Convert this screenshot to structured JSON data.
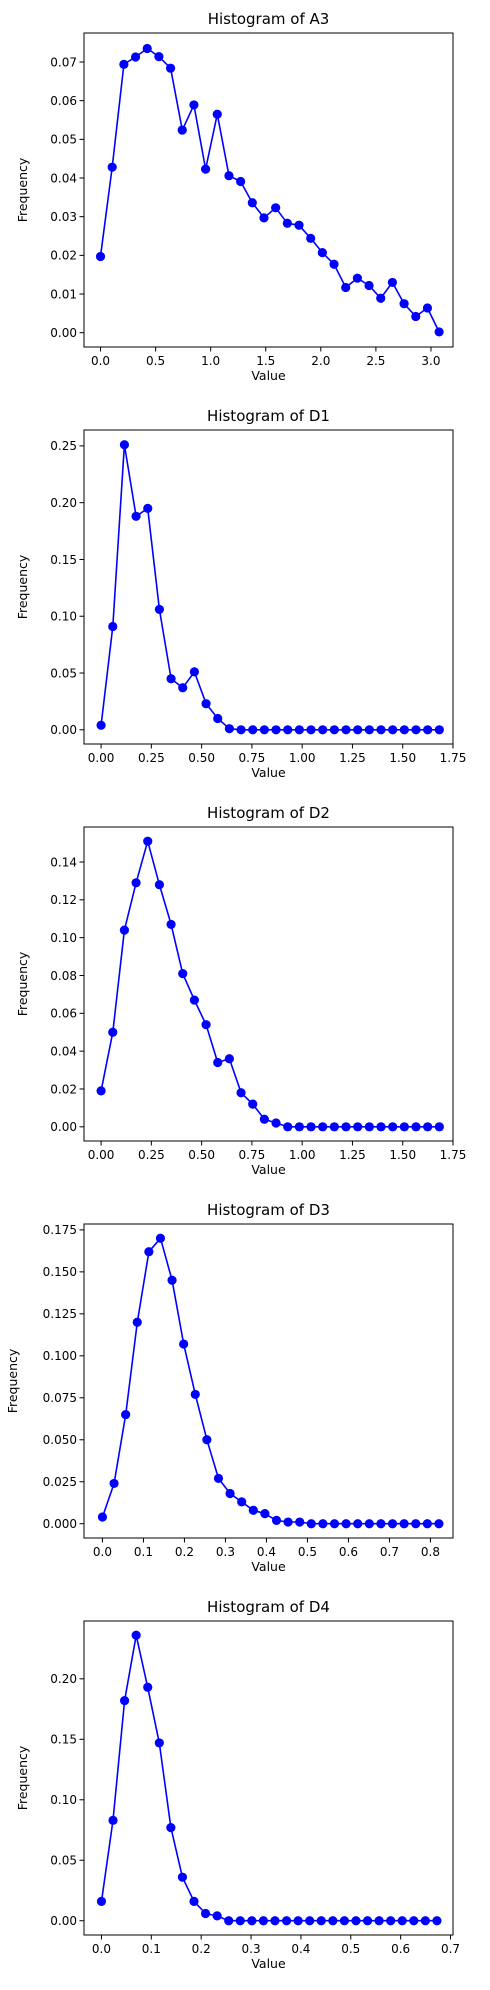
{
  "colors": {
    "series": "#0000ff",
    "axes": "#000000",
    "background": "#ffffff"
  },
  "chart_data": [
    {
      "type": "line",
      "title": "Histogram of A3",
      "xlabel": "Value",
      "ylabel": "Frequency",
      "marker": "circle",
      "grid": false,
      "xlim": [
        -0.15,
        3.2
      ],
      "ylim": [
        -0.0037,
        0.0775
      ],
      "x_ticks": [
        0.0,
        0.5,
        1.0,
        1.5,
        2.0,
        2.5,
        3.0
      ],
      "x_tick_labels": [
        "0.0",
        "0.5",
        "1.0",
        "1.5",
        "2.0",
        "2.5",
        "3.0"
      ],
      "y_ticks": [
        0.0,
        0.01,
        0.02,
        0.03,
        0.04,
        0.05,
        0.06,
        0.07
      ],
      "y_tick_labels": [
        "0.00",
        "0.01",
        "0.02",
        "0.03",
        "0.04",
        "0.05",
        "0.06",
        "0.07"
      ],
      "x": [
        0.0,
        0.106,
        0.212,
        0.318,
        0.424,
        0.53,
        0.636,
        0.742,
        0.848,
        0.954,
        1.06,
        1.166,
        1.272,
        1.378,
        1.484,
        1.59,
        1.696,
        1.802,
        1.908,
        2.014,
        2.12,
        2.226,
        2.332,
        2.438,
        2.544,
        2.65,
        2.756,
        2.862,
        2.968,
        3.074
      ],
      "values": [
        0.0197,
        0.0428,
        0.0694,
        0.0713,
        0.0735,
        0.0714,
        0.0684,
        0.0524,
        0.0589,
        0.0423,
        0.0565,
        0.0406,
        0.0391,
        0.0336,
        0.0297,
        0.0323,
        0.0283,
        0.0278,
        0.0244,
        0.0207,
        0.0177,
        0.0117,
        0.0141,
        0.0122,
        0.0089,
        0.013,
        0.0075,
        0.0042,
        0.0064,
        0.0002
      ]
    },
    {
      "type": "line",
      "title": "Histogram of D1",
      "xlabel": "Value",
      "ylabel": "Frequency",
      "marker": "circle",
      "grid": false,
      "xlim": [
        -0.085,
        1.75
      ],
      "ylim": [
        -0.0125,
        0.264
      ],
      "x_ticks": [
        0.0,
        0.25,
        0.5,
        0.75,
        1.0,
        1.25,
        1.5,
        1.75
      ],
      "x_tick_labels": [
        "0.00",
        "0.25",
        "0.50",
        "0.75",
        "1.00",
        "1.25",
        "1.50",
        "1.75"
      ],
      "y_ticks": [
        0.0,
        0.05,
        0.1,
        0.15,
        0.2,
        0.25
      ],
      "y_tick_labels": [
        "0.00",
        "0.05",
        "0.10",
        "0.15",
        "0.20",
        "0.25"
      ],
      "x": [
        0.0,
        0.058,
        0.116,
        0.174,
        0.232,
        0.29,
        0.348,
        0.406,
        0.464,
        0.522,
        0.58,
        0.638,
        0.696,
        0.754,
        0.812,
        0.87,
        0.928,
        0.986,
        1.044,
        1.102,
        1.16,
        1.218,
        1.276,
        1.334,
        1.392,
        1.45,
        1.508,
        1.566,
        1.624,
        1.682
      ],
      "values": [
        0.004,
        0.091,
        0.251,
        0.188,
        0.195,
        0.106,
        0.045,
        0.037,
        0.051,
        0.023,
        0.01,
        0.001,
        0.0,
        0.0,
        0.0,
        0.0,
        0.0,
        0.0,
        0.0,
        0.0,
        0.0,
        0.0,
        0.0,
        0.0,
        0.0,
        0.0,
        0.0,
        0.0,
        0.0,
        0.0
      ]
    },
    {
      "type": "line",
      "title": "Histogram of D2",
      "xlabel": "Value",
      "ylabel": "Frequency",
      "marker": "circle",
      "grid": false,
      "xlim": [
        -0.085,
        1.75
      ],
      "ylim": [
        -0.0075,
        0.1585
      ],
      "x_ticks": [
        0.0,
        0.25,
        0.5,
        0.75,
        1.0,
        1.25,
        1.5,
        1.75
      ],
      "x_tick_labels": [
        "0.00",
        "0.25",
        "0.50",
        "0.75",
        "1.00",
        "1.25",
        "1.50",
        "1.75"
      ],
      "y_ticks": [
        0.0,
        0.02,
        0.04,
        0.06,
        0.08,
        0.1,
        0.12,
        0.14
      ],
      "y_tick_labels": [
        "0.00",
        "0.02",
        "0.04",
        "0.06",
        "0.08",
        "0.10",
        "0.12",
        "0.14"
      ],
      "x": [
        0.0,
        0.058,
        0.116,
        0.174,
        0.232,
        0.29,
        0.348,
        0.406,
        0.464,
        0.522,
        0.58,
        0.638,
        0.696,
        0.754,
        0.812,
        0.87,
        0.928,
        0.986,
        1.044,
        1.102,
        1.16,
        1.218,
        1.276,
        1.334,
        1.392,
        1.45,
        1.508,
        1.566,
        1.624,
        1.682
      ],
      "values": [
        0.019,
        0.05,
        0.104,
        0.129,
        0.151,
        0.128,
        0.107,
        0.081,
        0.067,
        0.054,
        0.034,
        0.036,
        0.018,
        0.012,
        0.004,
        0.002,
        0.0,
        0.0,
        0.0,
        0.0,
        0.0,
        0.0,
        0.0,
        0.0,
        0.0,
        0.0,
        0.0,
        0.0,
        0.0,
        0.0
      ]
    },
    {
      "type": "line",
      "title": "Histogram of D3",
      "xlabel": "Value",
      "ylabel": "Frequency",
      "marker": "circle",
      "grid": false,
      "xlim": [
        -0.045,
        0.855
      ],
      "ylim": [
        -0.0085,
        0.1785
      ],
      "x_ticks": [
        0.0,
        0.1,
        0.2,
        0.3,
        0.4,
        0.5,
        0.6,
        0.7,
        0.8
      ],
      "x_tick_labels": [
        "0.0",
        "0.1",
        "0.2",
        "0.3",
        "0.4",
        "0.5",
        "0.6",
        "0.7",
        "0.8"
      ],
      "y_ticks": [
        0.0,
        0.025,
        0.05,
        0.075,
        0.1,
        0.125,
        0.15,
        0.175
      ],
      "y_tick_labels": [
        "0.000",
        "0.025",
        "0.050",
        "0.075",
        "0.100",
        "0.125",
        "0.150",
        "0.175"
      ],
      "x": [
        0.0,
        0.0283,
        0.0566,
        0.0849,
        0.1132,
        0.1415,
        0.1698,
        0.1981,
        0.2264,
        0.2547,
        0.283,
        0.3113,
        0.3396,
        0.3679,
        0.3962,
        0.4245,
        0.4528,
        0.4811,
        0.5094,
        0.5377,
        0.566,
        0.5943,
        0.6226,
        0.6509,
        0.6792,
        0.7075,
        0.7358,
        0.7641,
        0.7924,
        0.8207
      ],
      "values": [
        0.004,
        0.024,
        0.065,
        0.12,
        0.162,
        0.17,
        0.145,
        0.107,
        0.077,
        0.05,
        0.027,
        0.018,
        0.013,
        0.008,
        0.006,
        0.002,
        0.001,
        0.001,
        0.0,
        0.0,
        0.0,
        0.0,
        0.0,
        0.0,
        0.0,
        0.0,
        0.0,
        0.0,
        0.0,
        0.0
      ]
    },
    {
      "type": "line",
      "title": "Histogram of D4",
      "xlabel": "Value",
      "ylabel": "Frequency",
      "marker": "circle",
      "grid": false,
      "xlim": [
        -0.035,
        0.705
      ],
      "ylim": [
        -0.0118,
        0.2478
      ],
      "x_ticks": [
        0.0,
        0.1,
        0.2,
        0.3,
        0.4,
        0.5,
        0.6,
        0.7
      ],
      "x_tick_labels": [
        "0.0",
        "0.1",
        "0.2",
        "0.3",
        "0.4",
        "0.5",
        "0.6",
        "0.7"
      ],
      "y_ticks": [
        0.0,
        0.05,
        0.1,
        0.15,
        0.2
      ],
      "y_tick_labels": [
        "0.00",
        "0.05",
        "0.10",
        "0.15",
        "0.20"
      ],
      "x": [
        0.0,
        0.0232,
        0.0464,
        0.0696,
        0.0928,
        0.116,
        0.1392,
        0.1624,
        0.1856,
        0.2088,
        0.232,
        0.2552,
        0.2784,
        0.3016,
        0.3248,
        0.348,
        0.3712,
        0.3944,
        0.4176,
        0.4408,
        0.464,
        0.4872,
        0.5104,
        0.5336,
        0.5568,
        0.58,
        0.6032,
        0.6264,
        0.6496,
        0.6728
      ],
      "values": [
        0.016,
        0.083,
        0.182,
        0.236,
        0.193,
        0.147,
        0.077,
        0.036,
        0.016,
        0.006,
        0.004,
        0.0,
        0.0,
        0.0,
        0.0,
        0.0,
        0.0,
        0.0,
        0.0,
        0.0,
        0.0,
        0.0,
        0.0,
        0.0,
        0.0,
        0.0,
        0.0,
        0.0,
        0.0,
        0.0
      ]
    }
  ]
}
